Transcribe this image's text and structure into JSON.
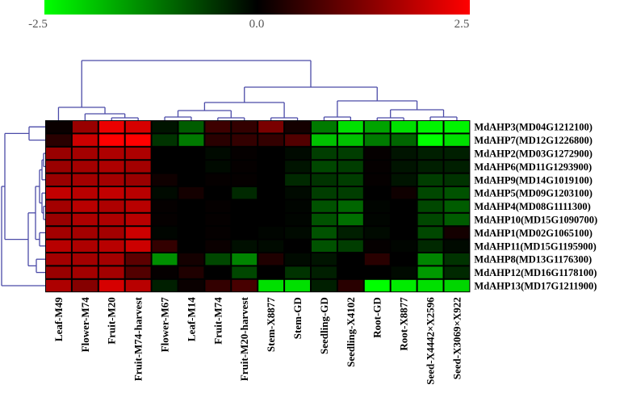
{
  "chart_data": {
    "type": "heatmap",
    "title": "",
    "colorbar": {
      "min": -2.5,
      "max": 2.5,
      "tick_labels": [
        "-2.5",
        "0.0",
        "2.5"
      ],
      "low_color": "#00ff00",
      "mid_color": "#000000",
      "high_color": "#ff0000"
    },
    "columns": [
      "Leaf-M49",
      "Flower-M74",
      "Fruit-M20",
      "Fruit-M74-harvest",
      "Flower-M67",
      "Leaf-M14",
      "Fruit-M74",
      "Fruit-M20-harvest",
      "Stem-X8877",
      "Stem-GD",
      "Seedling-GD",
      "Seedling-X4102",
      "Root-GD",
      "Root-X8877",
      "Seed-X4442×X2596",
      "Seed-X3069×X922"
    ],
    "rows": [
      "MdAHP3(MD04G1212100)",
      "MdAHP7(MD12G1226800)",
      "MdAHP2(MD03G1272900)",
      "MdAHP6(MD11G1293900)",
      "MdAHP9(MD14G1019100)",
      "MdAHP5(MD09G1203100)",
      "MdAHP4(MD08G1111300)",
      "MdAHP10(MD15G1090700)",
      "MdAHP1(MD02G1065100)",
      "MdAHP11(MD15G1195900)",
      "MdAHP8(MD13G1176300)",
      "MdAHP12(MD16G1178100)",
      "MdAHP13(MD17G1211900)"
    ],
    "values": [
      [
        0.1,
        1.5,
        2.3,
        2.1,
        -0.2,
        -0.9,
        0.6,
        0.5,
        1.2,
        0.2,
        -1.2,
        -2.2,
        -1.6,
        -2.2,
        -2.4,
        -2.4
      ],
      [
        0.4,
        2.0,
        2.5,
        2.5,
        -0.5,
        -1.2,
        0.4,
        0.5,
        0.5,
        0.8,
        -1.9,
        -1.9,
        -1.2,
        -1.0,
        -2.5,
        -2.2
      ],
      [
        1.5,
        1.6,
        1.7,
        1.7,
        0,
        0,
        -0.1,
        0.05,
        0,
        -0.1,
        -0.6,
        -0.6,
        0.05,
        -0.2,
        -0.3,
        -0.3
      ],
      [
        1.5,
        1.6,
        1.7,
        1.6,
        0,
        0,
        -0.1,
        0.05,
        0,
        -0.2,
        -0.7,
        -0.6,
        0.05,
        -0.2,
        -0.3,
        -0.3
      ],
      [
        1.5,
        1.6,
        1.6,
        1.5,
        0.15,
        0,
        0.05,
        0.05,
        0,
        -0.4,
        -0.5,
        -0.6,
        0.05,
        -0.2,
        -0.6,
        -0.5
      ],
      [
        1.9,
        1.8,
        1.9,
        1.8,
        -0.1,
        0.2,
        0,
        -0.4,
        0,
        -0.1,
        -0.6,
        -0.6,
        0,
        0.15,
        -0.7,
        -0.8
      ],
      [
        1.6,
        1.8,
        1.7,
        1.8,
        0.05,
        0,
        0.05,
        0,
        0,
        -0.05,
        -0.8,
        -1.0,
        -0.05,
        0,
        -0.7,
        -0.9
      ],
      [
        1.5,
        1.7,
        1.7,
        1.8,
        0.05,
        0,
        0.05,
        0,
        0,
        -0.05,
        -0.8,
        -1.1,
        -0.05,
        0,
        -0.7,
        -0.9
      ],
      [
        1.6,
        1.6,
        1.6,
        2.0,
        -0.05,
        0,
        0.05,
        0,
        -0.05,
        -0.1,
        -0.8,
        -0.3,
        -0.1,
        0,
        -0.7,
        0.2
      ],
      [
        1.8,
        1.7,
        1.8,
        2.0,
        0.5,
        0,
        0.1,
        -0.15,
        -0.1,
        0,
        -0.8,
        -0.6,
        0.05,
        -0.05,
        -0.4,
        -0.1
      ],
      [
        1.6,
        1.6,
        1.6,
        0.9,
        -1.4,
        0.2,
        -0.7,
        -1.3,
        0.3,
        -0.1,
        -0.2,
        0,
        0.4,
        0,
        -1.3,
        -0.5
      ],
      [
        1.5,
        1.6,
        1.6,
        0.8,
        0.05,
        0.3,
        0,
        -0.7,
        0,
        -0.5,
        -0.3,
        0,
        0,
        -0.1,
        -1.5,
        -0.4
      ],
      [
        1.7,
        1.3,
        2.1,
        1.8,
        -0.3,
        0.1,
        0.5,
        0.7,
        -2.2,
        -2.2,
        -0.3,
        0.4,
        -2.5,
        -2.3,
        -2.2,
        -2.1
      ]
    ],
    "dendrogram_color": "#4b4ba8"
  }
}
